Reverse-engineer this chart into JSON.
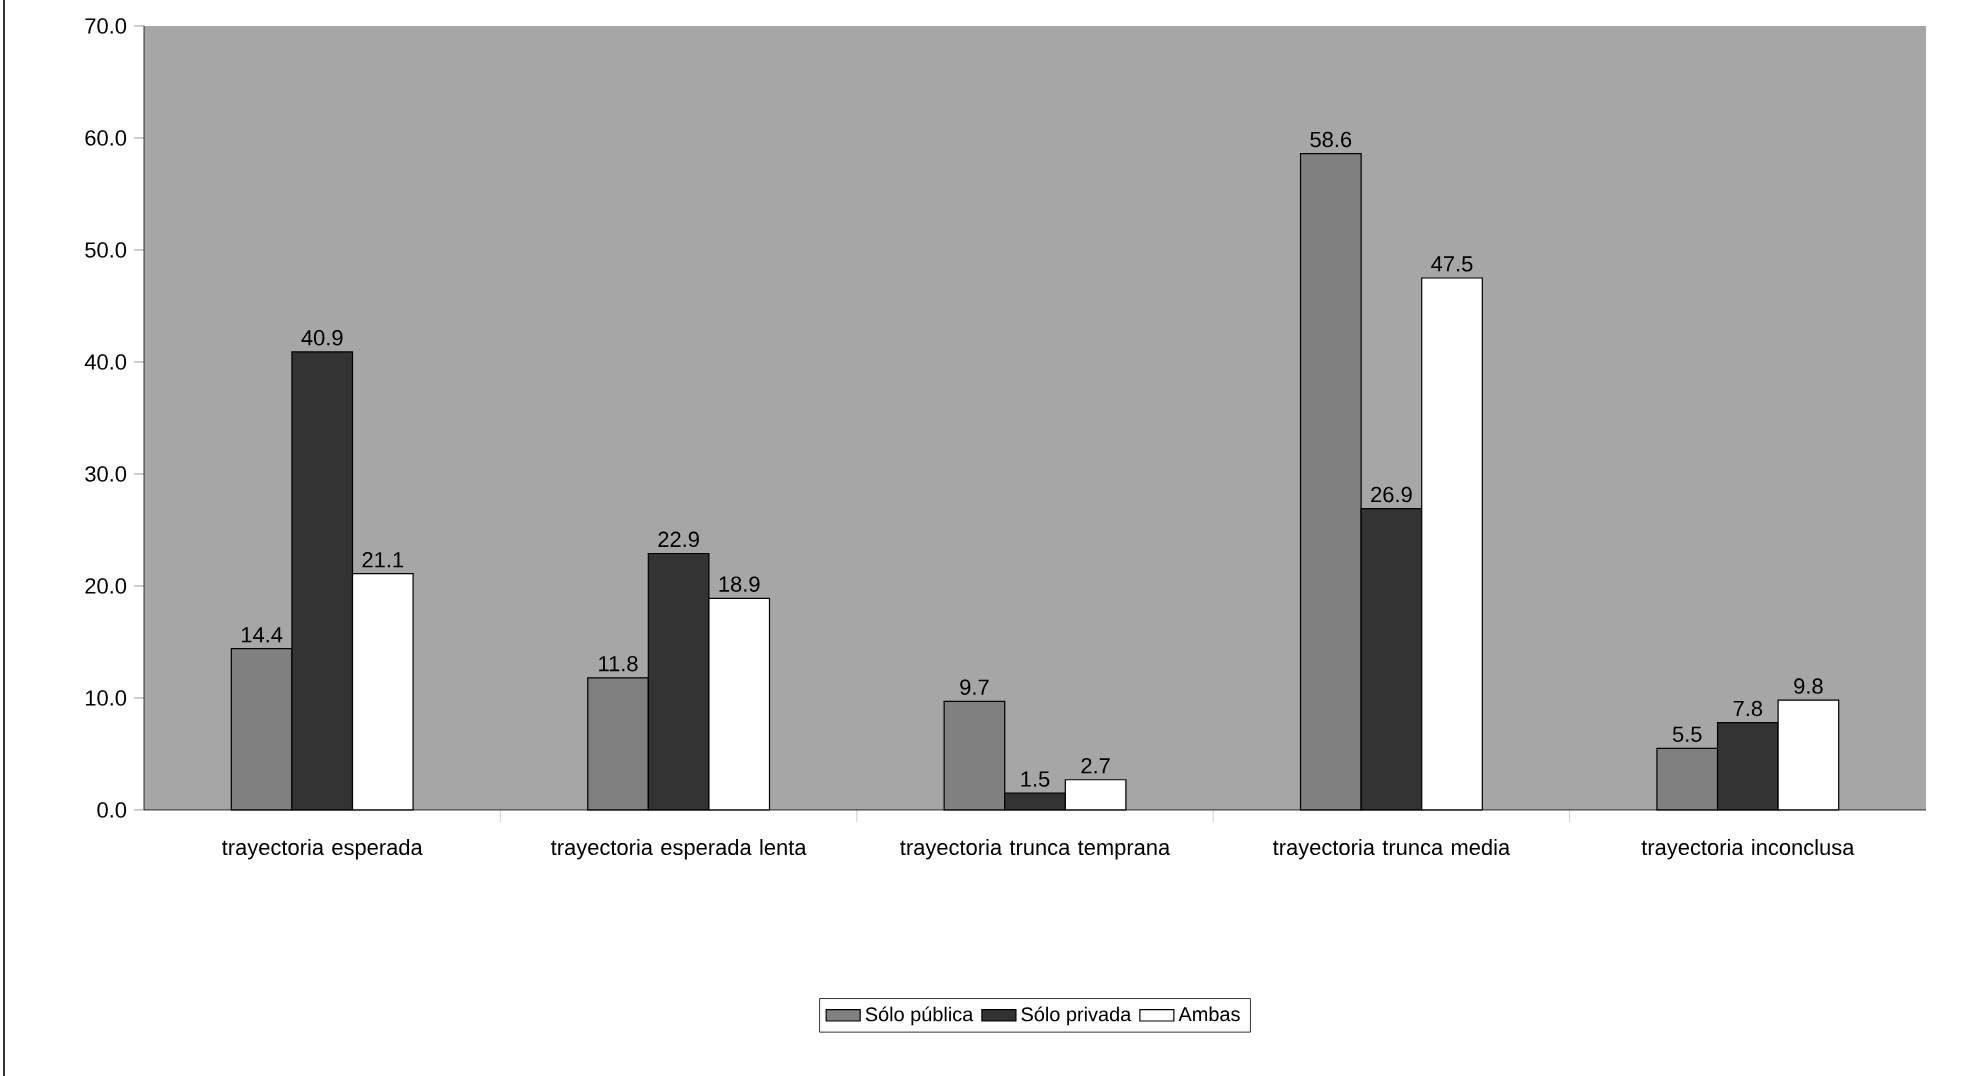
{
  "chart_data": {
    "type": "bar",
    "categories": [
      "trayectoria esperada",
      "trayectoria esperada lenta",
      "trayectoria trunca temprana",
      "trayectoria trunca media",
      "trayectoria inconclusa"
    ],
    "series": [
      {
        "name": "Sólo pública",
        "color": "#808080",
        "values": [
          14.4,
          11.8,
          9.7,
          58.6,
          5.5
        ]
      },
      {
        "name": "Sólo privada",
        "color": "#333333",
        "values": [
          40.9,
          22.9,
          1.5,
          26.9,
          7.8
        ]
      },
      {
        "name": "Ambas",
        "color": "#ffffff",
        "values": [
          21.1,
          18.9,
          2.7,
          47.5,
          9.8
        ]
      }
    ],
    "ylim": [
      0,
      70
    ],
    "yticks": [
      {
        "value": 0,
        "label": "0.0"
      },
      {
        "value": 10,
        "label": "10.0"
      },
      {
        "value": 20,
        "label": "20.0"
      },
      {
        "value": 30,
        "label": "30.0"
      },
      {
        "value": 40,
        "label": "40.0"
      },
      {
        "value": 50,
        "label": "50.0"
      },
      {
        "value": 60,
        "label": "60.0"
      },
      {
        "value": 70,
        "label": "70.0"
      }
    ],
    "data_labels": true,
    "legend": "bottom"
  }
}
